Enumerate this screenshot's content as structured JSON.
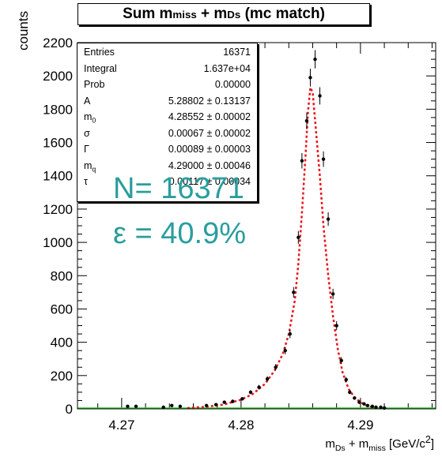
{
  "chart_data": {
    "type": "line",
    "title_parts": {
      "base1": "Sum m",
      "sub1": "miss",
      "base2": " + m",
      "sub2": "Ds",
      "rest": " (mc match)"
    },
    "ylabel": "counts",
    "xlabel_parts": {
      "base1": "m",
      "sub1": "Ds",
      "base2": " + m",
      "sub2": "miss",
      "rest": " [GeV/c",
      "sup": "2",
      "end": "]"
    },
    "xlim": [
      4.2663,
      4.2963
    ],
    "ylim": [
      0,
      2200
    ],
    "xticks": [
      4.27,
      4.28,
      4.29
    ],
    "xtick_labels": [
      "4.27",
      "4.28",
      "4.29"
    ],
    "yticks": [
      0,
      200,
      400,
      600,
      800,
      1000,
      1200,
      1400,
      1600,
      1800,
      2000,
      2200
    ],
    "ytick_labels": [
      "0",
      "200",
      "400",
      "600",
      "800",
      "1000",
      "1200",
      "1400",
      "1600",
      "1800",
      "2000",
      "2200"
    ],
    "colors": {
      "data": "#000000",
      "fit": "#e8141c",
      "baseline": "#22cc22",
      "annotation": "#2a9d9d"
    },
    "series": [
      {
        "style": "markers-with-error-bars",
        "x": [
          4.2705,
          4.2712,
          4.2735,
          4.2742,
          4.2749,
          4.2771,
          4.2779,
          4.2786,
          4.2793,
          4.2801,
          4.2808,
          4.2815,
          4.2822,
          4.2829,
          4.2837,
          4.2841,
          4.2844,
          4.2848,
          4.2851,
          4.2855,
          4.2858,
          4.2862,
          4.2866,
          4.2869,
          4.2873,
          4.2877,
          4.288,
          4.2884,
          4.2888,
          4.2891,
          4.2895,
          4.2899,
          4.2903,
          4.2906,
          4.291,
          4.2913,
          4.2917,
          4.292
        ],
        "y": [
          15,
          15,
          10,
          20,
          15,
          20,
          25,
          40,
          45,
          60,
          100,
          130,
          180,
          250,
          350,
          450,
          700,
          1030,
          1490,
          1730,
          1990,
          2100,
          1880,
          1500,
          1140,
          690,
          500,
          290,
          175,
          100,
          65,
          40,
          30,
          20,
          15,
          10,
          10,
          5
        ]
      },
      {
        "style": "dashed-fit-curve",
        "x": [
          4.2755,
          4.277,
          4.2785,
          4.28,
          4.281,
          4.282,
          4.2828,
          4.2835,
          4.284,
          4.2845,
          4.2848,
          4.2851,
          4.2854,
          4.2856,
          4.2858,
          4.286,
          4.2863,
          4.2866,
          4.2869,
          4.2873,
          4.2877,
          4.2881,
          4.2885,
          4.289,
          4.2895,
          4.29,
          4.2905,
          4.291
        ],
        "y": [
          5,
          12,
          25,
          55,
          90,
          150,
          230,
          330,
          450,
          650,
          870,
          1180,
          1520,
          1780,
          1930,
          1900,
          1650,
          1400,
          1100,
          800,
          560,
          360,
          220,
          120,
          70,
          40,
          20,
          10
        ]
      }
    ],
    "stats": [
      {
        "name": "Entries",
        "value": "16371"
      },
      {
        "name": "Integral",
        "value": "1.637e+04"
      },
      {
        "name": "Prob",
        "value": "0.00000"
      },
      {
        "name": "A",
        "value": "5.28802 ± 0.13137"
      },
      {
        "name": "m",
        "sub": "0",
        "value": "4.28552 ± 0.00002"
      },
      {
        "name": "σ",
        "value": "0.00067 ± 0.00002"
      },
      {
        "name": "Γ",
        "value": "0.00089 ± 0.00003"
      },
      {
        "name": "m",
        "sub": "q",
        "value": "4.29000 ± 0.00046"
      },
      {
        "name": "τ",
        "value": "0.00117 ± 0.00034"
      }
    ],
    "annotations": [
      "N= 16371",
      "ε = 40.9%"
    ]
  }
}
